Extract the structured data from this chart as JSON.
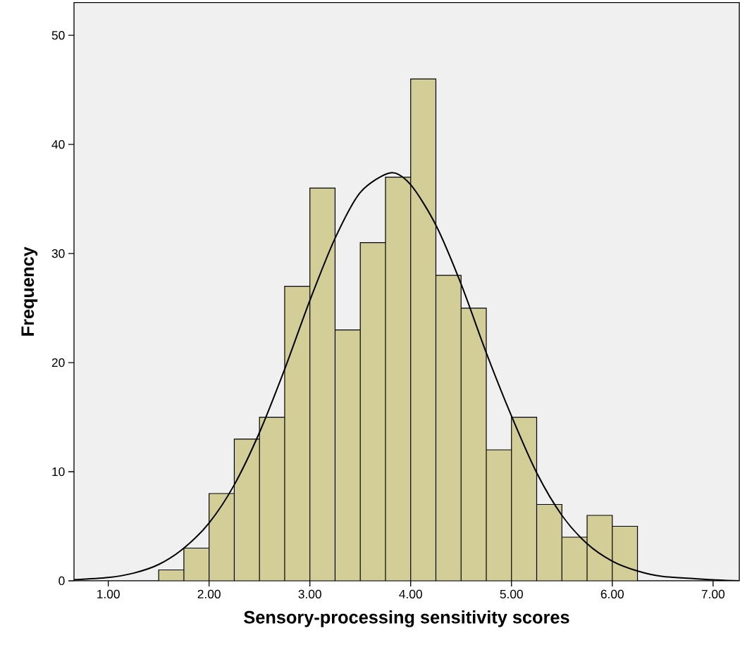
{
  "chart_data": {
    "type": "histogram",
    "xlabel": "Sensory-processing sensitivity scores",
    "ylabel": "Frequency",
    "xlim": [
      0.66,
      7.26
    ],
    "ylim": [
      0,
      53
    ],
    "xticks": [
      {
        "value": 1,
        "label": "1.00"
      },
      {
        "value": 2,
        "label": "2.00"
      },
      {
        "value": 3,
        "label": "3.00"
      },
      {
        "value": 4,
        "label": "4.00"
      },
      {
        "value": 5,
        "label": "5.00"
      },
      {
        "value": 6,
        "label": "6.00"
      },
      {
        "value": 7,
        "label": "7.00"
      }
    ],
    "yticks": [
      0,
      10,
      20,
      30,
      40,
      50
    ],
    "grid": false,
    "series": [
      {
        "color": "#d3ce98",
        "bins": [
          1.5,
          1.75,
          2.0,
          2.25,
          2.5,
          2.75,
          3.0,
          3.25,
          3.5,
          3.75,
          4.0,
          4.25,
          4.5,
          4.75,
          5.0,
          5.25,
          5.5,
          5.75,
          6.0,
          6.25
        ],
        "values": [
          1,
          3,
          8,
          13,
          15,
          27,
          36,
          23,
          31,
          37,
          46,
          28,
          25,
          12,
          15,
          7,
          4,
          6,
          5
        ]
      },
      {
        "type": "line",
        "color": "#000000",
        "x": [
          0.66,
          1.0,
          1.25,
          1.5,
          1.75,
          2.0,
          2.25,
          2.5,
          2.75,
          3.0,
          3.25,
          3.5,
          3.8,
          4.0,
          4.25,
          4.5,
          4.75,
          5.0,
          5.25,
          5.5,
          5.75,
          6.0,
          6.25,
          6.5,
          7.0,
          7.26
        ],
        "values": [
          0.1,
          0.3,
          0.7,
          1.5,
          3.0,
          5.3,
          8.8,
          13.6,
          19.4,
          25.7,
          31.4,
          35.6,
          37.4,
          36.3,
          32.6,
          27.2,
          20.9,
          15.1,
          9.9,
          6.0,
          3.4,
          1.8,
          0.9,
          0.4,
          0.1,
          0.0
        ]
      }
    ]
  }
}
